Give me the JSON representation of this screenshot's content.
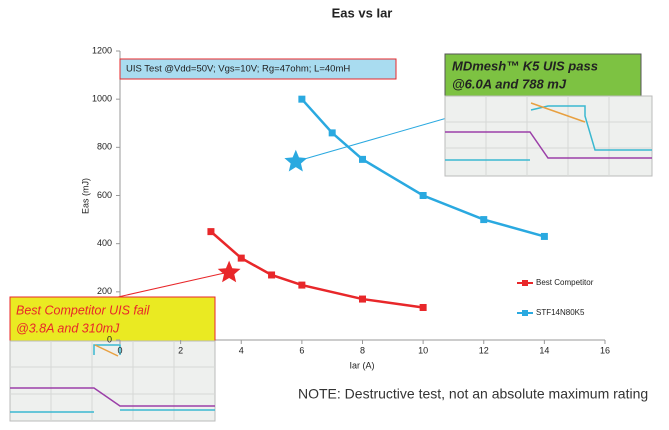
{
  "chart_data": {
    "type": "line",
    "title": "Eas vs Iar",
    "x_label": "Iar (A)",
    "y_label": "Eas (mJ)",
    "xlim": [
      0,
      16
    ],
    "xticks": [
      0,
      2,
      4,
      6,
      8,
      10,
      12,
      14,
      16
    ],
    "ylim": [
      0,
      1200
    ],
    "yticks": [
      0,
      200,
      400,
      600,
      800,
      1000,
      1200
    ],
    "series": [
      {
        "name": "Best Competitor",
        "color": "#e8272a",
        "x": [
          3,
          4,
          5,
          6,
          8,
          10
        ],
        "values": [
          450,
          340,
          270,
          228,
          170,
          135
        ]
      },
      {
        "name": "STF14N80K5",
        "color": "#2aa9e0",
        "x": [
          6,
          7,
          8,
          10,
          12,
          14
        ],
        "values": [
          1000,
          860,
          750,
          600,
          500,
          430
        ]
      }
    ],
    "highlights": [
      {
        "x": 5.8,
        "y": 740,
        "color": "#2aa9e0"
      },
      {
        "x": 3.6,
        "y": 280,
        "color": "#e8272a"
      }
    ],
    "annotations": {
      "test_conditions": "UIS Test @Vdd=50V; Vgs=10V; Rg=47ohm; L=40mH",
      "pass_line1": "MDmesh™ K5 UIS pass",
      "pass_line2": "@6.0A and 788 mJ",
      "fail_line1": "Best Competitor UIS fail",
      "fail_line2": "@3.8A and 310mJ",
      "note": "NOTE: Destructive test, not an absolute maximum rating"
    }
  }
}
